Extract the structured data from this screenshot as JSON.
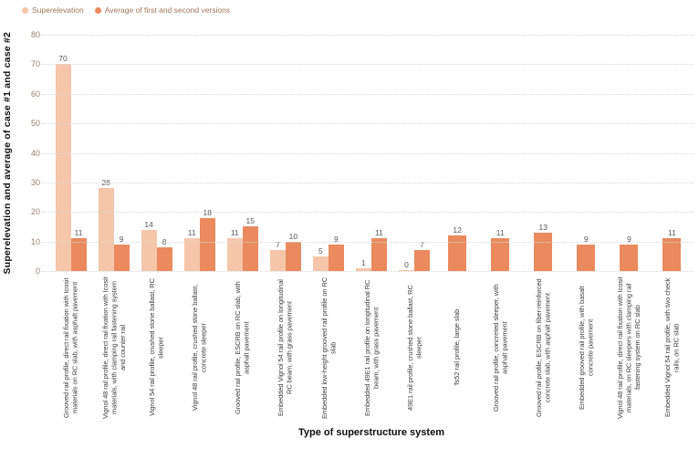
{
  "legend": {
    "items": [
      {
        "label": "Superelevation",
        "color": "#f5c6a9"
      },
      {
        "label": "Average of first and second versions",
        "color": "#ea8a5e"
      }
    ]
  },
  "y_axis": {
    "title": "Superelevation and average of case #1 and case #2"
  },
  "x_axis": {
    "title": "Type of superstructure system"
  },
  "chart_data": {
    "type": "bar",
    "title": "",
    "xlabel": "Type of superstructure system",
    "ylabel": "Superelevation and average of case #1 and case #2",
    "ylim": [
      0,
      80
    ],
    "ytick_step": 10,
    "grid": true,
    "legend_position": "top-left",
    "value_labels": true,
    "categories": [
      "Grooved rail profile, direct rail fixation with Icosit materials on RC slab, with asphalt pavement",
      "Vignol 48 rail profile, direct rail fixation with Icosit materials, with clamping rail fastening system and counter rail",
      "Vignol 54 rail profile, crushed stone ballast, RC sleeper",
      "Vignol 48 rail profile, crushed stone ballast, concrete sleeper",
      "Grooved rail profile, ESCRB on RC slab, with asphalt pavement",
      "Embedded Vignol 54 rail profile on longitudinal RC beam, with grass pavement",
      "Embedded low-height grooved rail profile on RC slab",
      "Embedded 49E1 rail profile on longitudinal RC beam, with grass pavement",
      "49E1 rail profile, crushed stone ballast, RC sleeper",
      "Ts52 rail profile, large slab",
      "Grooved rail profile, concreted sleeper, with asphalt pavement",
      "Grooved rail profile, ESCRB on fiber-reinforced concrete slab, with asphalt pavement",
      "Embedded grooved rail profile, with basalt concrete pavement",
      "Vignol 48 rail profile, direct rail fixation with Icosit materials, on RC sleepers with clamping rail fastening system on RC slab",
      "Embedded Vignol 54 rail profile, with two check rails, on RC slab"
    ],
    "series": [
      {
        "name": "Superelevation",
        "color": "#f5c6a9",
        "values": [
          70,
          28,
          14,
          11,
          11,
          7,
          5,
          1,
          0,
          null,
          null,
          null,
          null,
          null,
          null
        ]
      },
      {
        "name": "Average of first and second versions",
        "color": "#ea8a5e",
        "values": [
          11,
          9,
          8,
          18,
          15,
          10,
          9,
          11,
          7,
          12,
          11,
          13,
          9,
          9,
          11
        ]
      }
    ]
  }
}
